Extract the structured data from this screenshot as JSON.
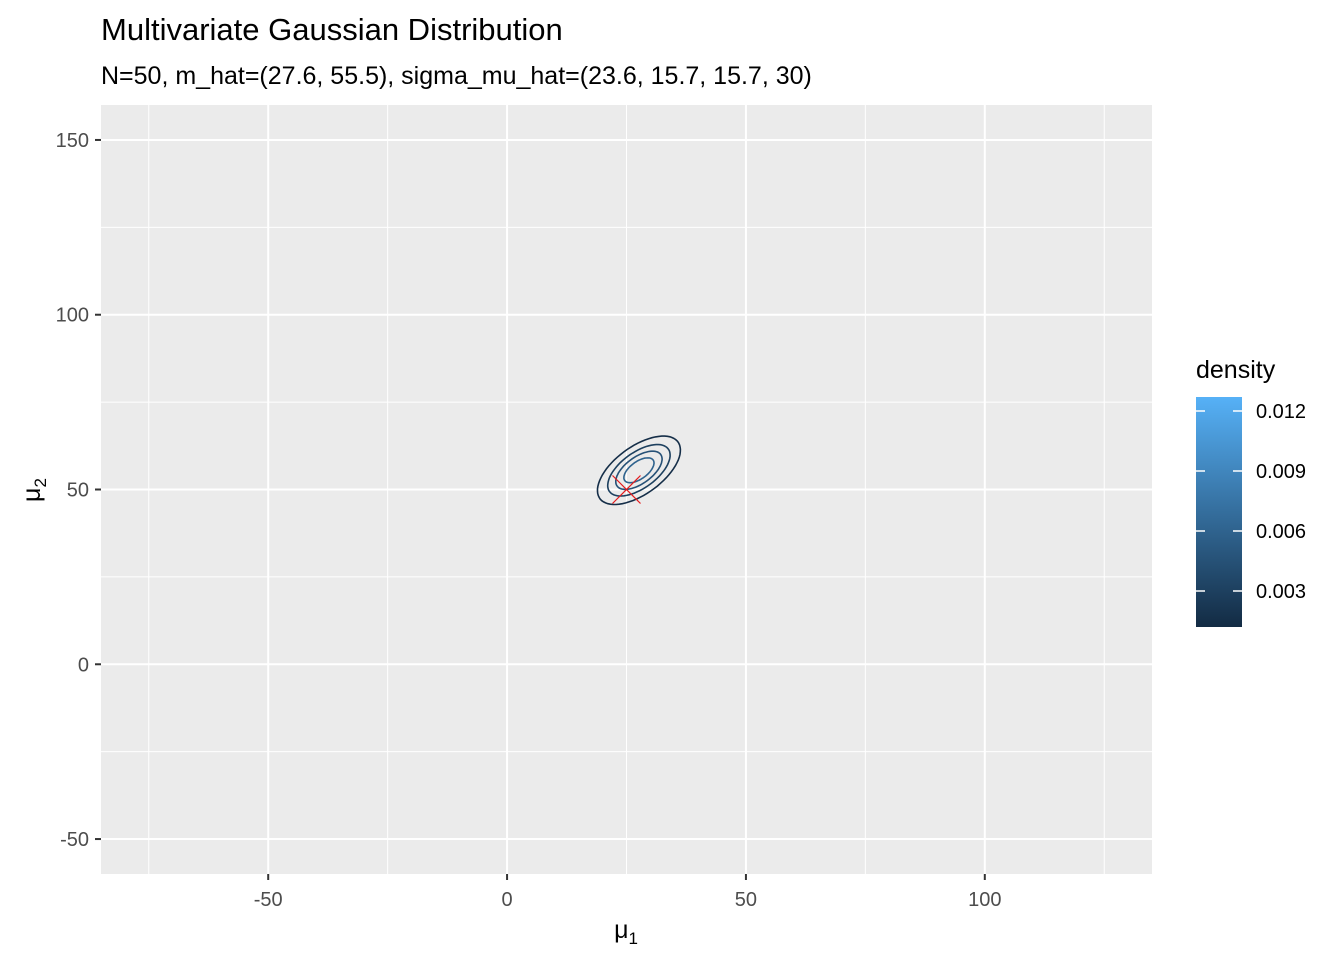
{
  "chart_data": {
    "type": "contour",
    "title": "Multivariate Gaussian Distribution",
    "subtitle": "N=50, m_hat=(27.6, 55.5), sigma_mu_hat=(23.6, 15.7, 15.7, 30)",
    "xlabel": {
      "base": "μ",
      "sub": "1"
    },
    "ylabel": {
      "base": "μ",
      "sub": "2"
    },
    "xlim": [
      -85,
      135
    ],
    "ylim": [
      -60,
      160
    ],
    "x_ticks": [
      -50,
      0,
      50,
      100
    ],
    "x_tick_labels": [
      "-50",
      "0",
      "50",
      "100"
    ],
    "y_ticks": [
      -50,
      0,
      50,
      100,
      150
    ],
    "y_tick_labels": [
      "-50",
      "0",
      "50",
      "100",
      "150"
    ],
    "x_minor": [
      -75,
      -25,
      25,
      75,
      125
    ],
    "y_minor": [
      -25,
      25,
      75,
      125
    ],
    "grid": true,
    "mean": [
      27.6,
      55.5
    ],
    "covariance": [
      [
        23.6,
        15.7
      ],
      [
        15.7,
        30
      ]
    ],
    "n": 50,
    "contour_levels": [
      0.0015,
      0.003,
      0.0045,
      0.006,
      0.0075,
      0.009,
      0.0105,
      0.012
    ],
    "true_mean_marker": {
      "x": 25,
      "y": 50,
      "marker": "x",
      "color": "#e41a1c"
    },
    "legend": {
      "title": "density",
      "position": "right",
      "range": [
        0.0012,
        0.0127
      ],
      "breaks": [
        0.003,
        0.006,
        0.009,
        0.012
      ],
      "break_labels": [
        "0.003",
        "0.006",
        "0.009",
        "0.012"
      ],
      "color_low": "#132b43",
      "color_high": "#56b1f7"
    },
    "panel_background": "#ebebeb",
    "grid_color": "#ffffff"
  }
}
